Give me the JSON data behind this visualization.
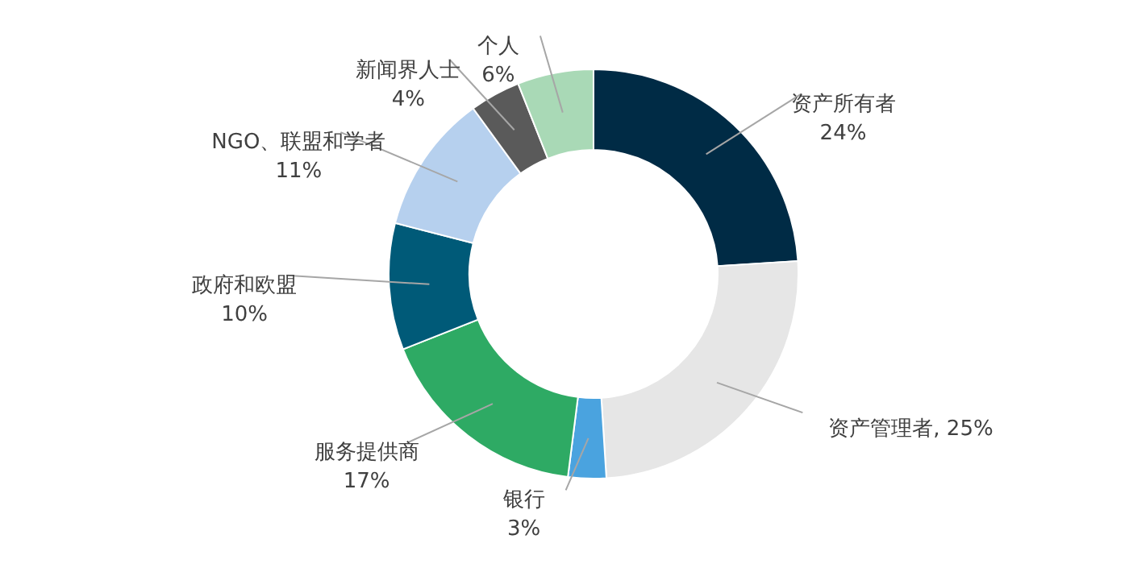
{
  "chart_data": {
    "type": "donut",
    "categories": [
      "资产所有者",
      "资产管理者",
      "银行",
      "服务提供商",
      "政府和欧盟",
      "NGO、联盟和学者",
      "新闻界人士",
      "个人"
    ],
    "values": [
      24,
      25,
      3,
      17,
      10,
      11,
      4,
      6
    ],
    "colors": [
      "#002b45",
      "#e6e6e6",
      "#4aa3df",
      "#2eaa64",
      "#005a78",
      "#b6d0ee",
      "#5a5a5a",
      "#a9d9b6"
    ],
    "value_labels": [
      "24%",
      "25%",
      "3%",
      "17%",
      "10%",
      "11%",
      "4%",
      "6%"
    ]
  }
}
